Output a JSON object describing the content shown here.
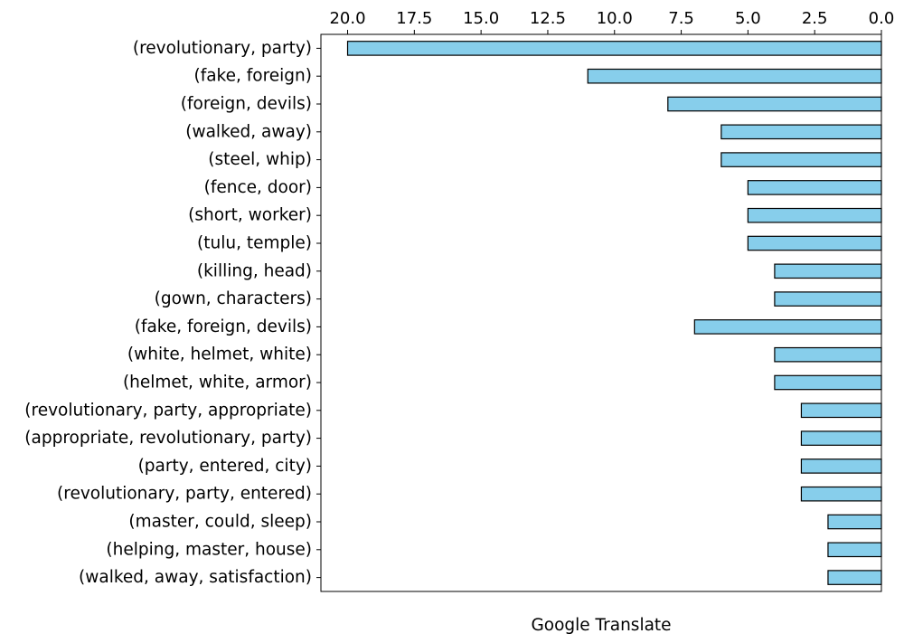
{
  "chart_data": {
    "type": "bar",
    "orientation": "horizontal",
    "x_axis_inverted": true,
    "x_ticks_position": "top",
    "xlabel": "Google Translate",
    "xlim": [
      0,
      21
    ],
    "xticks": [
      "20.0",
      "17.5",
      "15.0",
      "12.5",
      "10.0",
      "7.5",
      "5.0",
      "2.5",
      "0.0"
    ],
    "bar_color": "#87ceeb",
    "edge_color": "#000000",
    "categories": [
      "(revolutionary, party)",
      "(fake, foreign)",
      "(foreign, devils)",
      "(walked, away)",
      "(steel, whip)",
      "(fence, door)",
      "(short, worker)",
      "(tulu, temple)",
      "(killing, head)",
      "(gown, characters)",
      "(fake, foreign, devils)",
      "(white, helmet, white)",
      "(helmet, white, armor)",
      "(revolutionary, party, appropriate)",
      "(appropriate, revolutionary, party)",
      "(party, entered, city)",
      "(revolutionary, party, entered)",
      "(master, could, sleep)",
      "(helping, master, house)",
      "(walked, away, satisfaction)"
    ],
    "values": [
      20,
      11,
      8,
      6,
      6,
      5,
      5,
      5,
      4,
      4,
      7,
      4,
      4,
      3,
      3,
      3,
      3,
      2,
      2,
      2
    ]
  }
}
